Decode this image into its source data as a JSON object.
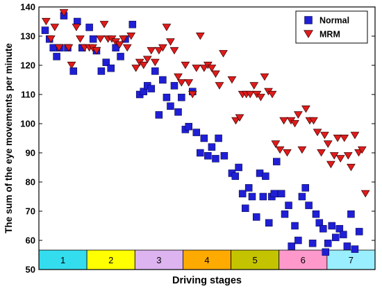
{
  "chart_data": {
    "type": "scatter",
    "title": "",
    "xlabel": "Driving stages",
    "ylabel": "The sum of the eye movements per minute",
    "xlim": [
      0,
      7
    ],
    "ylim": [
      50,
      140
    ],
    "yticks": [
      50,
      60,
      70,
      80,
      90,
      100,
      110,
      120,
      130,
      140
    ],
    "grid": false,
    "legend_position": "top-right",
    "stages": [
      {
        "label": "1",
        "color": "#33ddee"
      },
      {
        "label": "2",
        "color": "#ffff00"
      },
      {
        "label": "3",
        "color": "#ddb3f0"
      },
      {
        "label": "4",
        "color": "#ffaa00"
      },
      {
        "label": "5",
        "color": "#c3c300"
      },
      {
        "label": "6",
        "color": "#ff99cc"
      },
      {
        "label": "7",
        "color": "#99eeff"
      }
    ],
    "series": [
      {
        "name": "Normal",
        "marker": "square",
        "color": "#1f1fd6",
        "points": [
          [
            0.13,
            132
          ],
          [
            0.22,
            129
          ],
          [
            0.3,
            126
          ],
          [
            0.37,
            123
          ],
          [
            0.44,
            126
          ],
          [
            0.52,
            137
          ],
          [
            0.6,
            126
          ],
          [
            0.72,
            118
          ],
          [
            0.8,
            135
          ],
          [
            0.9,
            126
          ],
          [
            1.05,
            133
          ],
          [
            1.13,
            129
          ],
          [
            1.2,
            125
          ],
          [
            1.3,
            118
          ],
          [
            1.4,
            121
          ],
          [
            1.5,
            119
          ],
          [
            1.6,
            126
          ],
          [
            1.7,
            123
          ],
          [
            1.8,
            129
          ],
          [
            1.95,
            134
          ],
          [
            2.1,
            110
          ],
          [
            2.18,
            111
          ],
          [
            2.26,
            113
          ],
          [
            2.34,
            112
          ],
          [
            2.42,
            118
          ],
          [
            2.5,
            103
          ],
          [
            2.58,
            115
          ],
          [
            2.66,
            109
          ],
          [
            2.74,
            106
          ],
          [
            2.82,
            113
          ],
          [
            2.9,
            104
          ],
          [
            2.97,
            109
          ],
          [
            3.05,
            98
          ],
          [
            3.12,
            99
          ],
          [
            3.2,
            111
          ],
          [
            3.28,
            97
          ],
          [
            3.36,
            90
          ],
          [
            3.44,
            95
          ],
          [
            3.52,
            89
          ],
          [
            3.6,
            92
          ],
          [
            3.68,
            88
          ],
          [
            3.74,
            95
          ],
          [
            3.86,
            89
          ],
          [
            4.02,
            83
          ],
          [
            4.09,
            82
          ],
          [
            4.16,
            85
          ],
          [
            4.24,
            76
          ],
          [
            4.3,
            71
          ],
          [
            4.37,
            78
          ],
          [
            4.44,
            75
          ],
          [
            4.53,
            68
          ],
          [
            4.6,
            83
          ],
          [
            4.67,
            75
          ],
          [
            4.72,
            82
          ],
          [
            4.79,
            66
          ],
          [
            4.85,
            75
          ],
          [
            4.9,
            76
          ],
          [
            4.95,
            87
          ],
          [
            5.05,
            76
          ],
          [
            5.12,
            69
          ],
          [
            5.2,
            72
          ],
          [
            5.26,
            58
          ],
          [
            5.33,
            65
          ],
          [
            5.4,
            60
          ],
          [
            5.48,
            75
          ],
          [
            5.55,
            78
          ],
          [
            5.62,
            72
          ],
          [
            5.7,
            59
          ],
          [
            5.77,
            69
          ],
          [
            5.84,
            66
          ],
          [
            5.92,
            64
          ],
          [
            5.97,
            56
          ],
          [
            6.02,
            59
          ],
          [
            6.1,
            65
          ],
          [
            6.18,
            61
          ],
          [
            6.26,
            64
          ],
          [
            6.34,
            62
          ],
          [
            6.42,
            58
          ],
          [
            6.5,
            69
          ],
          [
            6.58,
            57
          ],
          [
            6.67,
            63
          ]
        ]
      },
      {
        "name": "MRM",
        "marker": "triangle-down",
        "color": "#e01b1b",
        "points": [
          [
            0.15,
            135
          ],
          [
            0.25,
            129
          ],
          [
            0.33,
            133
          ],
          [
            0.42,
            126
          ],
          [
            0.52,
            138
          ],
          [
            0.62,
            126
          ],
          [
            0.68,
            120
          ],
          [
            0.78,
            133
          ],
          [
            0.86,
            129
          ],
          [
            0.95,
            126
          ],
          [
            1.05,
            126
          ],
          [
            1.12,
            126
          ],
          [
            1.2,
            125
          ],
          [
            1.28,
            129
          ],
          [
            1.36,
            134
          ],
          [
            1.44,
            129
          ],
          [
            1.52,
            129
          ],
          [
            1.6,
            128
          ],
          [
            1.68,
            127
          ],
          [
            1.76,
            129
          ],
          [
            1.84,
            126
          ],
          [
            1.92,
            130
          ],
          [
            2.02,
            119
          ],
          [
            2.1,
            121
          ],
          [
            2.18,
            120
          ],
          [
            2.26,
            122
          ],
          [
            2.34,
            125
          ],
          [
            2.42,
            121
          ],
          [
            2.5,
            125
          ],
          [
            2.58,
            126
          ],
          [
            2.66,
            133
          ],
          [
            2.74,
            128
          ],
          [
            2.82,
            125
          ],
          [
            2.9,
            116
          ],
          [
            2.97,
            114
          ],
          [
            3.05,
            120
          ],
          [
            3.12,
            114
          ],
          [
            3.2,
            110
          ],
          [
            3.28,
            119
          ],
          [
            3.36,
            130
          ],
          [
            3.44,
            119
          ],
          [
            3.52,
            120
          ],
          [
            3.6,
            119
          ],
          [
            3.68,
            117
          ],
          [
            3.76,
            113
          ],
          [
            3.84,
            124
          ],
          [
            4.02,
            115
          ],
          [
            4.1,
            101
          ],
          [
            4.18,
            102
          ],
          [
            4.24,
            110
          ],
          [
            4.32,
            110
          ],
          [
            4.4,
            110
          ],
          [
            4.48,
            113
          ],
          [
            4.54,
            110
          ],
          [
            4.62,
            109
          ],
          [
            4.7,
            116
          ],
          [
            4.78,
            111
          ],
          [
            4.86,
            110
          ],
          [
            4.93,
            93
          ],
          [
            5.02,
            91
          ],
          [
            5.1,
            101
          ],
          [
            5.17,
            90
          ],
          [
            5.25,
            101
          ],
          [
            5.33,
            100
          ],
          [
            5.4,
            103
          ],
          [
            5.48,
            91
          ],
          [
            5.56,
            105
          ],
          [
            5.64,
            101
          ],
          [
            5.72,
            101
          ],
          [
            5.8,
            97
          ],
          [
            5.88,
            90
          ],
          [
            5.95,
            96
          ],
          [
            6.02,
            93
          ],
          [
            6.08,
            86
          ],
          [
            6.15,
            89
          ],
          [
            6.22,
            95
          ],
          [
            6.28,
            88
          ],
          [
            6.36,
            95
          ],
          [
            6.44,
            89
          ],
          [
            6.5,
            85
          ],
          [
            6.58,
            96
          ],
          [
            6.66,
            90
          ],
          [
            6.73,
            91
          ],
          [
            6.8,
            76
          ]
        ]
      }
    ]
  }
}
